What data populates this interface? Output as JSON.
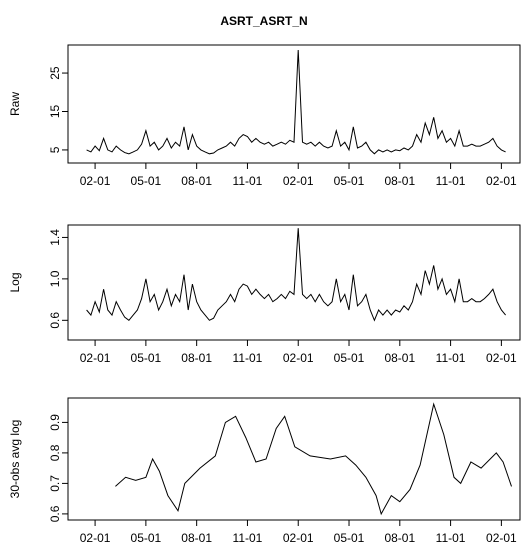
{
  "chart_data": [
    {
      "type": "line",
      "title": "ASRT_ASRT_N",
      "ylabel": "Raw",
      "color": "#000000",
      "xlim": [
        -1.6,
        25.1
      ],
      "ylim": [
        1.6,
        32.3
      ],
      "xticks": [
        {
          "value": 0,
          "label": "02-01"
        },
        {
          "value": 3,
          "label": "05-01"
        },
        {
          "value": 6,
          "label": "08-01"
        },
        {
          "value": 9,
          "label": "11-01"
        },
        {
          "value": 12,
          "label": "02-01"
        },
        {
          "value": 15,
          "label": "05-01"
        },
        {
          "value": 18,
          "label": "08-01"
        },
        {
          "value": 21,
          "label": "11-01"
        },
        {
          "value": 24,
          "label": "02-01"
        }
      ],
      "yticks": [
        5,
        15,
        25
      ],
      "x": [
        -0.5,
        -0.25,
        0,
        0.25,
        0.5,
        0.75,
        1,
        1.25,
        1.5,
        1.75,
        2,
        2.25,
        2.5,
        2.75,
        3,
        3.25,
        3.5,
        3.75,
        4,
        4.25,
        4.5,
        4.75,
        5,
        5.25,
        5.5,
        5.75,
        6,
        6.25,
        6.5,
        6.75,
        7,
        7.25,
        7.5,
        7.75,
        8,
        8.25,
        8.5,
        8.75,
        9,
        9.25,
        9.5,
        9.75,
        10,
        10.25,
        10.5,
        10.75,
        11,
        11.25,
        11.5,
        11.75,
        12,
        12.25,
        12.5,
        12.75,
        13,
        13.25,
        13.5,
        13.75,
        14,
        14.25,
        14.5,
        14.75,
        15,
        15.25,
        15.5,
        15.75,
        16,
        16.25,
        16.5,
        16.75,
        17,
        17.25,
        17.5,
        17.75,
        18,
        18.25,
        18.5,
        18.75,
        19,
        19.25,
        19.5,
        19.75,
        20,
        20.25,
        20.5,
        20.75,
        21,
        21.25,
        21.5,
        21.75,
        22,
        22.25,
        22.5,
        22.75,
        23,
        23.25,
        23.5,
        23.75,
        24,
        24.25
      ],
      "values": [
        5,
        4.5,
        6,
        4.8,
        8,
        5,
        4.5,
        6,
        5,
        4.3,
        4,
        4.5,
        5,
        6.5,
        10,
        6,
        7,
        5,
        6,
        8,
        5.5,
        7,
        6,
        11,
        5,
        9,
        6,
        5,
        4.5,
        4,
        4.2,
        5,
        5.5,
        6,
        7,
        6,
        8,
        9,
        8.5,
        7,
        8,
        7,
        6.5,
        7,
        6,
        6.5,
        7,
        6.5,
        7.5,
        7,
        31,
        7,
        6.5,
        7,
        6,
        7,
        6,
        5.5,
        6,
        10,
        6,
        7,
        5,
        11,
        5.5,
        6,
        7,
        5,
        4,
        5,
        4.5,
        5,
        4.5,
        5,
        4.8,
        5.5,
        5,
        6,
        9,
        7,
        12,
        9,
        13.5,
        8,
        10,
        7,
        8,
        6,
        10,
        6,
        6,
        6.5,
        6,
        6,
        6.5,
        7,
        8,
        6,
        5,
        4.5
      ]
    },
    {
      "type": "line",
      "ylabel": "Log",
      "color": "#000000",
      "xlim": [
        -1.6,
        25.1
      ],
      "ylim": [
        0.41,
        1.52
      ],
      "xticks": [
        {
          "value": 0,
          "label": "02-01"
        },
        {
          "value": 3,
          "label": "05-01"
        },
        {
          "value": 6,
          "label": "08-01"
        },
        {
          "value": 9,
          "label": "11-01"
        },
        {
          "value": 12,
          "label": "02-01"
        },
        {
          "value": 15,
          "label": "05-01"
        },
        {
          "value": 18,
          "label": "08-01"
        },
        {
          "value": 21,
          "label": "11-01"
        },
        {
          "value": 24,
          "label": "02-01"
        }
      ],
      "yticks": [
        0.6,
        {
          "value": 1,
          "label": "1.0"
        },
        1.4
      ],
      "x": [
        -0.5,
        -0.25,
        0,
        0.25,
        0.5,
        0.75,
        1,
        1.25,
        1.5,
        1.75,
        2,
        2.25,
        2.5,
        2.75,
        3,
        3.25,
        3.5,
        3.75,
        4,
        4.25,
        4.5,
        4.75,
        5,
        5.25,
        5.5,
        5.75,
        6,
        6.25,
        6.5,
        6.75,
        7,
        7.25,
        7.5,
        7.75,
        8,
        8.25,
        8.5,
        8.75,
        9,
        9.25,
        9.5,
        9.75,
        10,
        10.25,
        10.5,
        10.75,
        11,
        11.25,
        11.5,
        11.75,
        12,
        12.25,
        12.5,
        12.75,
        13,
        13.25,
        13.5,
        13.75,
        14,
        14.25,
        14.5,
        14.75,
        15,
        15.25,
        15.5,
        15.75,
        16,
        16.25,
        16.5,
        16.75,
        17,
        17.25,
        17.5,
        17.75,
        18,
        18.25,
        18.5,
        18.75,
        19,
        19.25,
        19.5,
        19.75,
        20,
        20.25,
        20.5,
        20.75,
        21,
        21.25,
        21.5,
        21.75,
        22,
        22.25,
        22.5,
        22.75,
        23,
        23.25,
        23.5,
        23.75,
        24,
        24.25
      ],
      "values": [
        0.7,
        0.65,
        0.78,
        0.68,
        0.9,
        0.7,
        0.65,
        0.78,
        0.7,
        0.63,
        0.6,
        0.65,
        0.7,
        0.81,
        1,
        0.78,
        0.85,
        0.7,
        0.78,
        0.9,
        0.74,
        0.85,
        0.78,
        1.04,
        0.7,
        0.95,
        0.78,
        0.7,
        0.65,
        0.6,
        0.62,
        0.7,
        0.74,
        0.78,
        0.85,
        0.78,
        0.9,
        0.95,
        0.93,
        0.85,
        0.9,
        0.85,
        0.81,
        0.85,
        0.78,
        0.81,
        0.85,
        0.81,
        0.88,
        0.85,
        1.49,
        0.85,
        0.81,
        0.85,
        0.78,
        0.85,
        0.78,
        0.74,
        0.78,
        1,
        0.78,
        0.85,
        0.7,
        1.04,
        0.74,
        0.78,
        0.85,
        0.7,
        0.6,
        0.7,
        0.65,
        0.7,
        0.65,
        0.7,
        0.68,
        0.74,
        0.7,
        0.78,
        0.95,
        0.85,
        1.08,
        0.95,
        1.13,
        0.9,
        1,
        0.85,
        0.9,
        0.78,
        1,
        0.78,
        0.78,
        0.81,
        0.78,
        0.78,
        0.81,
        0.85,
        0.9,
        0.78,
        0.7,
        0.65
      ]
    },
    {
      "type": "line",
      "ylabel": "30-obs avg log",
      "color": "#000000",
      "xlim": [
        -1.6,
        25.1
      ],
      "ylim": [
        0.58,
        0.98
      ],
      "xticks": [
        {
          "value": 0,
          "label": "02-01"
        },
        {
          "value": 3,
          "label": "05-01"
        },
        {
          "value": 6,
          "label": "08-01"
        },
        {
          "value": 9,
          "label": "11-01"
        },
        {
          "value": 12,
          "label": "02-01"
        },
        {
          "value": 15,
          "label": "05-01"
        },
        {
          "value": 18,
          "label": "08-01"
        },
        {
          "value": 21,
          "label": "11-01"
        },
        {
          "value": 24,
          "label": "02-01"
        }
      ],
      "yticks": [
        0.6,
        0.7,
        0.8,
        0.9
      ],
      "x": [
        1.2,
        1.8,
        2.4,
        3.0,
        3.4,
        3.8,
        4.3,
        4.9,
        5.3,
        6.2,
        7.1,
        7.7,
        8.3,
        8.9,
        9.5,
        10.1,
        10.7,
        11.2,
        11.8,
        12.7,
        13.9,
        14.8,
        15.4,
        16.0,
        16.6,
        16.9,
        17.5,
        18.0,
        18.6,
        19.2,
        20.0,
        20.6,
        21.2,
        21.6,
        22.2,
        22.8,
        23.7,
        24.1,
        24.6
      ],
      "values": [
        0.69,
        0.72,
        0.71,
        0.72,
        0.78,
        0.74,
        0.66,
        0.61,
        0.7,
        0.75,
        0.79,
        0.9,
        0.92,
        0.85,
        0.77,
        0.78,
        0.88,
        0.92,
        0.82,
        0.79,
        0.78,
        0.79,
        0.76,
        0.72,
        0.66,
        0.6,
        0.66,
        0.64,
        0.68,
        0.76,
        0.96,
        0.86,
        0.72,
        0.7,
        0.77,
        0.75,
        0.8,
        0.77,
        0.69
      ]
    }
  ]
}
